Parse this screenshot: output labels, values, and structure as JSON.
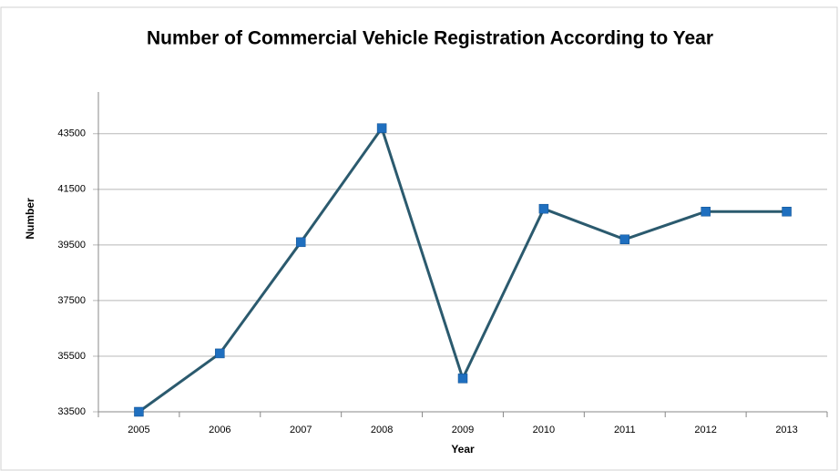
{
  "chart_data": {
    "type": "line",
    "title": "Number of Commercial Vehicle Registration According to Year",
    "x_label": "Year",
    "y_label": "Number",
    "categories": [
      "2005",
      "2006",
      "2007",
      "2008",
      "2009",
      "2010",
      "2011",
      "2012",
      "2013"
    ],
    "series": [
      {
        "name": "Number",
        "color": "#2b5a6e",
        "marker_color": "#1f6fbf",
        "values": [
          33500,
          35600,
          39600,
          43700,
          34700,
          40800,
          39700,
          40700,
          40700
        ]
      }
    ],
    "ylim": [
      33500,
      45000
    ],
    "yticks": [
      33500,
      35500,
      37500,
      39500,
      41500,
      43500
    ],
    "grid": true
  }
}
